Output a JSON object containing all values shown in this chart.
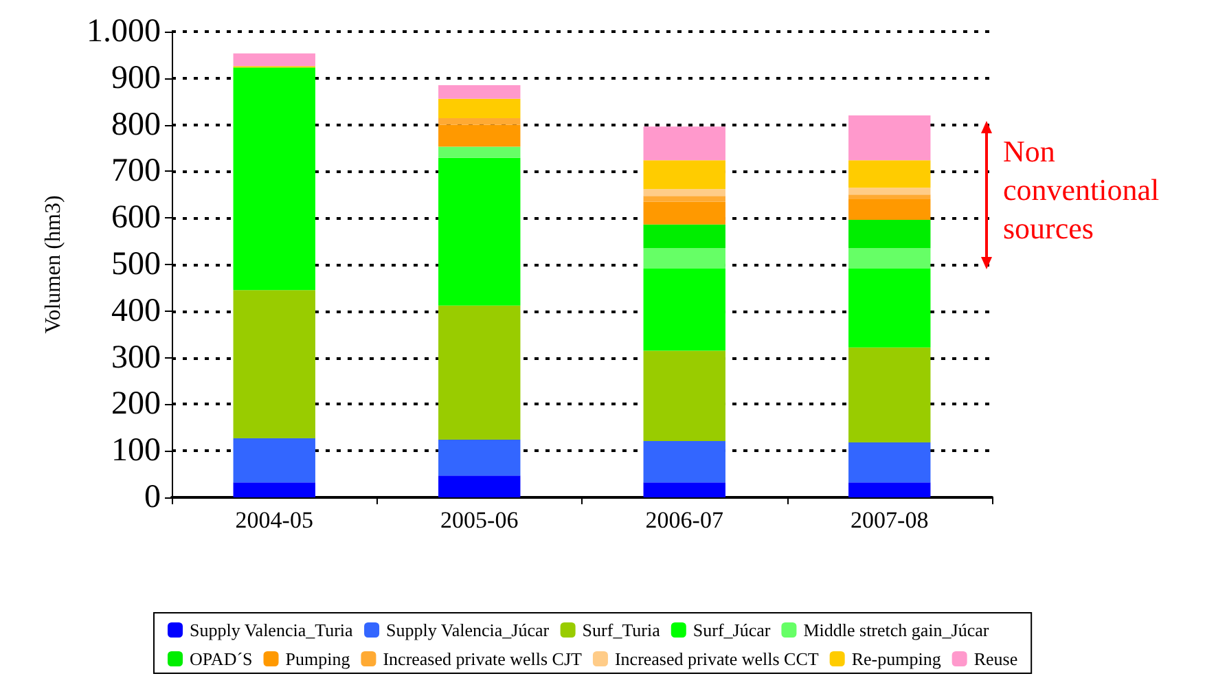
{
  "chart_data": {
    "type": "bar",
    "stacked": true,
    "ylabel": "Volumen (hm3)",
    "categories": [
      "2004-05",
      "2005-06",
      "2006-07",
      "2007-08"
    ],
    "series": [
      {
        "name": "Supply Valencia_Turia",
        "color": "#0000ff",
        "values": [
          32,
          47,
          32,
          32
        ]
      },
      {
        "name": "Supply Valencia_Júcar",
        "color": "#3366ff",
        "values": [
          95,
          77,
          89,
          86
        ]
      },
      {
        "name": "Surf_Turia",
        "color": "#99cc00",
        "values": [
          318,
          288,
          194,
          204
        ]
      },
      {
        "name": "Surf_Júcar",
        "color": "#00ff00",
        "values": [
          478,
          317,
          176,
          169
        ]
      },
      {
        "name": "Middle stretch gain_Júcar",
        "color": "#66ff66",
        "values": [
          0,
          24,
          44,
          44
        ]
      },
      {
        "name": "OPAD´S",
        "color": "#00ee00",
        "values": [
          0,
          0,
          51,
          61
        ]
      },
      {
        "name": "Pumping",
        "color": "#ff9900",
        "values": [
          0,
          47,
          49,
          44
        ]
      },
      {
        "name": "Increased private wells CJT",
        "color": "#ffaa33",
        "values": [
          0,
          14,
          12,
          10
        ]
      },
      {
        "name": "Increased private wells CCT",
        "color": "#ffcc88",
        "values": [
          0,
          0,
          15,
          15
        ]
      },
      {
        "name": "Re-pumping",
        "color": "#ffcc00",
        "values": [
          3,
          42,
          62,
          59
        ]
      },
      {
        "name": "Reuse",
        "color": "#ff99cc",
        "values": [
          27,
          29,
          72,
          96
        ]
      }
    ],
    "ylim": [
      0,
      1000
    ],
    "yticks": [
      0,
      100,
      200,
      300,
      400,
      500,
      600,
      700,
      800,
      900,
      {
        "value": 1000,
        "label": "1.000"
      }
    ],
    "grid": "y",
    "legend": "bottom",
    "annotations": [
      "Non conventional sources"
    ]
  }
}
